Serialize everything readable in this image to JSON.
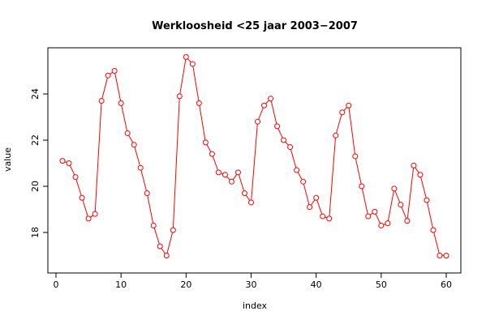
{
  "chart_data": {
    "type": "line",
    "title": "Werkloosheid <25 jaar 2003−2007",
    "xlabel": "index",
    "ylabel": "value",
    "xlim": [
      0,
      60
    ],
    "ylim": [
      16.7,
      25.8
    ],
    "x_ticks": [
      0,
      10,
      20,
      30,
      40,
      50,
      60
    ],
    "y_ticks": [
      18,
      20,
      22,
      24
    ],
    "grid": false,
    "legend": "none",
    "marker": "open-circle",
    "color": "#ff0000",
    "series": [
      {
        "x": [
          1,
          2,
          3,
          4,
          5,
          6,
          7,
          8,
          9,
          10,
          11,
          12,
          13,
          14,
          15,
          16,
          17,
          18,
          19,
          20,
          21,
          22,
          23,
          24,
          25,
          26,
          27,
          28,
          29,
          30,
          31,
          32,
          33,
          34,
          35,
          36,
          37,
          38,
          39,
          40,
          41,
          42,
          43,
          44,
          45,
          46,
          47,
          48,
          49,
          50,
          51,
          52,
          53,
          54,
          55,
          56,
          57,
          58,
          59,
          60
        ],
        "values": [
          21.1,
          21.0,
          20.4,
          19.5,
          18.6,
          18.8,
          23.7,
          24.8,
          25.0,
          23.6,
          22.3,
          21.8,
          20.8,
          19.7,
          18.3,
          17.4,
          17.0,
          18.1,
          23.9,
          25.6,
          25.3,
          23.6,
          21.9,
          21.4,
          20.6,
          20.5,
          20.2,
          20.6,
          19.7,
          19.3,
          22.8,
          23.5,
          23.8,
          22.6,
          22.0,
          21.7,
          20.7,
          20.2,
          19.1,
          19.5,
          18.7,
          18.6,
          22.2,
          23.2,
          23.5,
          21.3,
          20.0,
          18.7,
          18.9,
          18.3,
          18.4,
          19.9,
          19.2,
          18.5,
          20.9,
          20.5,
          19.4,
          18.1,
          17.0,
          17.0
        ]
      }
    ]
  }
}
